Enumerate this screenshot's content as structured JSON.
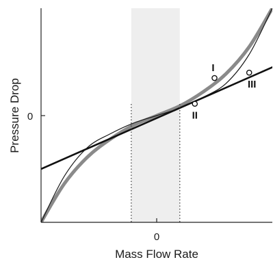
{
  "chart_data": {
    "type": "line",
    "xlabel": "Mass Flow Rate",
    "ylabel": "Pressure Drop",
    "x_ticks": [
      "0"
    ],
    "y_ticks": [
      "0"
    ],
    "xlim": [
      -1.0,
      1.0
    ],
    "ylim": [
      -1.0,
      1.0
    ],
    "shaded_region": {
      "x_start": -0.22,
      "x_end": 0.2,
      "color": "#eeeeee"
    },
    "series": [
      {
        "style": "thick-gray",
        "color": "#8a8a8a",
        "x": [
          -1.0,
          -0.8,
          -0.6,
          -0.4,
          -0.2,
          0.0,
          0.2,
          0.4,
          0.6,
          0.8,
          1.0
        ],
        "y": [
          -1.0,
          -0.64,
          -0.39,
          -0.22,
          -0.09,
          0.0,
          0.09,
          0.22,
          0.39,
          0.64,
          1.0
        ]
      },
      {
        "style": "thin-black",
        "color": "#1a1a1a",
        "x": [
          -1.0,
          -0.8,
          -0.6,
          -0.4,
          -0.2,
          0.0,
          0.2,
          0.4,
          0.6,
          0.8,
          1.0
        ],
        "y": [
          -1.0,
          -0.57,
          -0.3,
          -0.17,
          -0.07,
          0.0,
          0.07,
          0.17,
          0.3,
          0.57,
          1.0
        ]
      },
      {
        "style": "black-line",
        "color": "#111111",
        "x": [
          -1.0,
          1.0
        ],
        "y": [
          -0.5,
          0.45
        ]
      }
    ],
    "points": [
      {
        "label": "I",
        "x": 0.5,
        "y": 0.35
      },
      {
        "label": "II",
        "x": 0.33,
        "y": 0.11
      },
      {
        "label": "III",
        "x": 0.8,
        "y": 0.4
      }
    ]
  }
}
